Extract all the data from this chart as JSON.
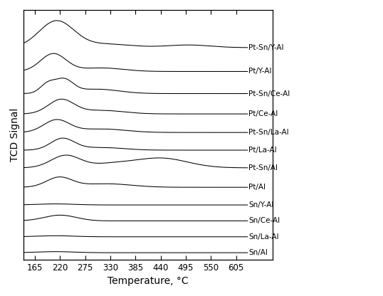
{
  "x_min": 140,
  "x_max": 630,
  "x_ticks": [
    165,
    220,
    275,
    330,
    385,
    440,
    495,
    550,
    605
  ],
  "xlabel": "Temperature, °C",
  "ylabel": "TCD Signal",
  "background_color": "#ffffff",
  "line_color": "#000000",
  "labels": [
    "Sn/Al",
    "Sn/La-Al",
    "Sn/Ce-Al",
    "Sn/Y-Al",
    "Pt/Al",
    "Pt-Sn/Al",
    "Pt/La-Al",
    "Pt-Sn/La-Al",
    "Pt/Ce-Al",
    "Pt-Sn/Ce-Al",
    "Pt/Y-Al",
    "Pt-Sn/Y-Al"
  ],
  "offsets": [
    0.0,
    0.18,
    0.36,
    0.54,
    0.74,
    0.96,
    1.16,
    1.36,
    1.57,
    1.8,
    2.05,
    2.32
  ]
}
